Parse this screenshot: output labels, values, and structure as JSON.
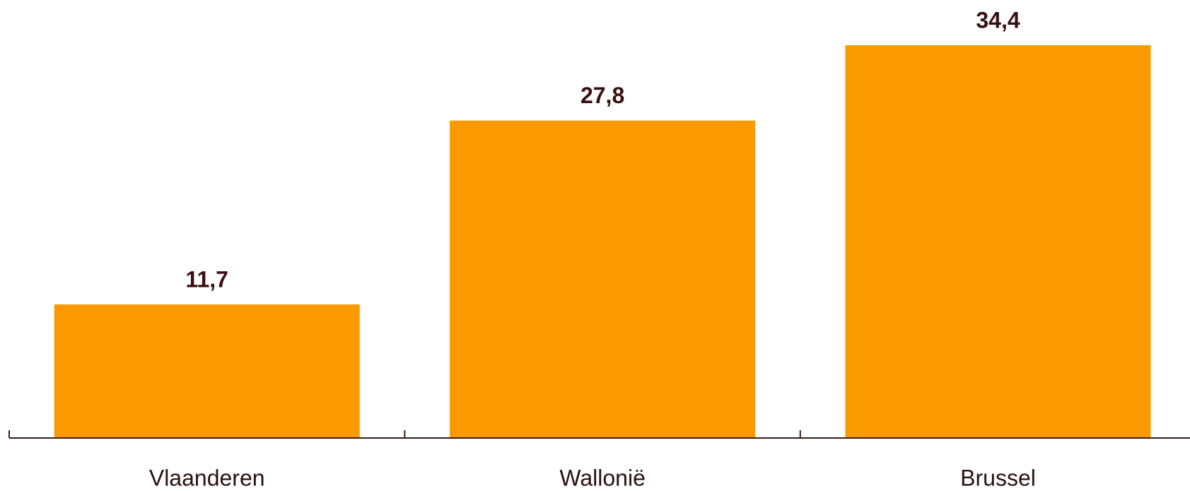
{
  "chart_data": {
    "type": "bar",
    "categories": [
      "Vlaanderen",
      "Wallonië",
      "Brussel"
    ],
    "values": [
      11.7,
      27.8,
      34.4
    ],
    "value_labels": [
      "11,7",
      "27,8",
      "34,4"
    ],
    "color": "#fb9a00"
  }
}
